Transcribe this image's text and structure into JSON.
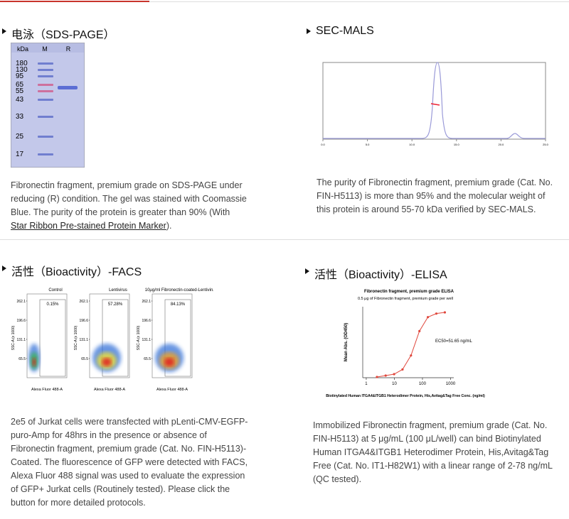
{
  "sds_page": {
    "title": "电泳（SDS-PAGE）",
    "kda_label": "kDa",
    "lanes": [
      "M",
      "R"
    ],
    "markers": [
      180,
      130,
      95,
      65,
      55,
      43,
      33,
      25,
      17
    ],
    "caption": [
      "Fibronectin fragment, premium grade on SDS-PAGE under",
      "reducing (R) condition. The gel was stained with Coomassie",
      "Blue. The purity of the protein is greater than 90% (With"
    ],
    "link": "Star Ribbon Pre-stained Protein Marker",
    "link_after": ")."
  },
  "sec_mals": {
    "title": "SEC-MALS",
    "xlim": [
      0,
      25
    ],
    "xticks": [
      {
        "value": 0,
        "label": "0.0"
      },
      {
        "value": 5,
        "label": "5.0"
      },
      {
        "value": 10,
        "label": "10.0"
      },
      {
        "value": 15,
        "label": "15.0"
      },
      {
        "value": 20,
        "label": "20.0"
      },
      {
        "value": 25,
        "label": "25.0"
      }
    ],
    "caption": [
      "The purity of Fibronectin fragment, premium grade (Cat. No.",
      "FIN-H5113) is more than 95% and the molecular weight of",
      "this protein is around 55-70 kDa verified by SEC-MALS."
    ]
  },
  "facs": {
    "title": "活性（Bioactivity）-FACS",
    "panels": [
      {
        "label": "Control",
        "percent": "0.15%"
      },
      {
        "label": "Lentivirus",
        "percent": "57.28%"
      },
      {
        "label": "10μg/ml Fibronectin-coated-Lentivirus",
        "percent": "84.13%"
      }
    ],
    "ylabel": "SSC-A (x 1000)",
    "xlabel": "Alexa Fluor 488-A",
    "yticks": [
      262.1,
      196.6,
      131.1,
      65.5
    ],
    "caption": [
      "2e5 of Jurkat cells were transfected with pLenti-CMV-EGFP-",
      "puro-Amp for 48hrs in the presence or absence of",
      "Fibronectin fragment, premium grade (Cat. No. FIN-H5113)-",
      "Coated. The fluorescence of GFP were detected with FACS,",
      "Alexa Fluor 488 signal was used to evaluate the expression",
      "of GFP+ Jurkat cells (Routinely tested). Please click the",
      "button for more detailed protocols."
    ]
  },
  "elisa": {
    "title": "活性（Bioactivity）-ELISA",
    "chart_data": {
      "type": "line",
      "title": "Fibronectin fragment, premium grade ELISA",
      "subtitle": "0.5 μg of Fibronectin fragment, premium grade per well",
      "ylabel": "Mean Abs. (OD450)",
      "xlabel": "Biotinylated Human ITGA4&ITGB1 Heterodimer Protein, His,Avitag&Tag Free Conc. (ng/ml)",
      "annotation": "EC50=51.65 ng/mL",
      "log_x": true,
      "xlim": [
        0.75,
        1300
      ],
      "ylim": [
        0,
        3
      ],
      "xticks": [
        1,
        10,
        100,
        1000
      ],
      "x": [
        2.4,
        4.9,
        9.8,
        19.5,
        39,
        78,
        156,
        312,
        625
      ],
      "series": [
        {
          "color": "#e0473c",
          "values": [
            0.03,
            0.09,
            0.15,
            0.35,
            0.94,
            1.97,
            2.56,
            2.71,
            2.76
          ]
        }
      ]
    },
    "caption": [
      "Immobilized Fibronectin fragment, premium grade (Cat. No.",
      "FIN-H5113) at 5 μg/mL (100 μL/well) can bind Biotinylated",
      "Human ITGA4&ITGB1 Heterodimer Protein, His,Avitag&Tag",
      "Free (Cat. No. IT1-H82W1) with a linear range of 2-78 ng/mL",
      "(QC tested)."
    ]
  }
}
